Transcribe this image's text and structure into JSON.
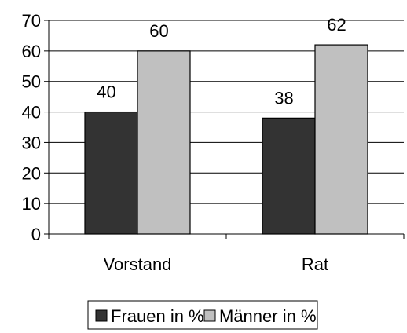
{
  "chart_data": {
    "type": "bar",
    "categories": [
      "Vorstand",
      "Rat"
    ],
    "series": [
      {
        "name": "Frauen in %",
        "values": [
          40,
          38
        ],
        "color": "#333333"
      },
      {
        "name": "Männer in %",
        "values": [
          60,
          62
        ],
        "color": "#c0c0c0"
      }
    ],
    "ylim": [
      0,
      70
    ],
    "yticks": [
      0,
      10,
      20,
      30,
      40,
      50,
      60,
      70
    ],
    "grid": true,
    "legend": "bottom",
    "data_labels": true
  }
}
